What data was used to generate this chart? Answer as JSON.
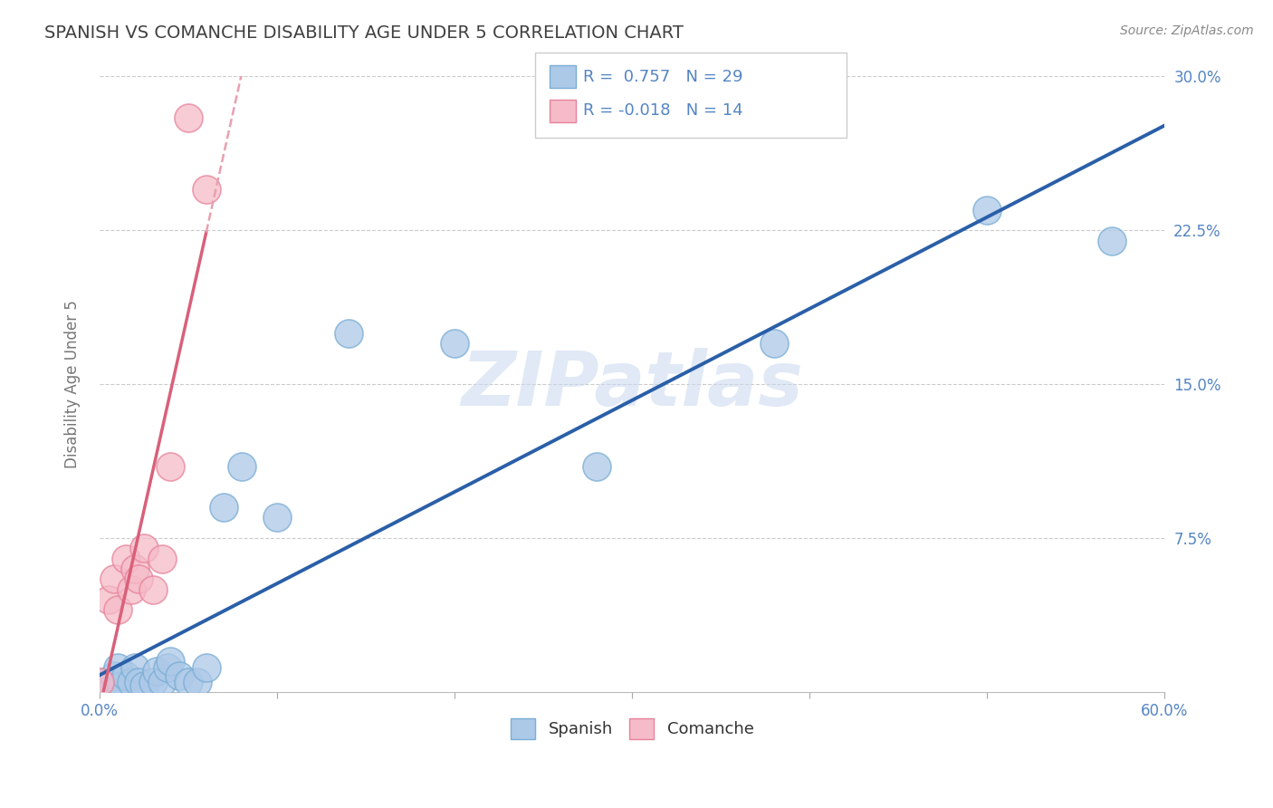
{
  "title": "SPANISH VS COMANCHE DISABILITY AGE UNDER 5 CORRELATION CHART",
  "source": "Source: ZipAtlas.com",
  "ylabel": "Disability Age Under 5",
  "xlim": [
    0.0,
    0.6
  ],
  "ylim": [
    0.0,
    0.3
  ],
  "xticks": [
    0.0,
    0.1,
    0.2,
    0.3,
    0.4,
    0.5,
    0.6
  ],
  "xticklabels": [
    "0.0%",
    "",
    "",
    "",
    "",
    "",
    "60.0%"
  ],
  "yticks": [
    0.0,
    0.075,
    0.15,
    0.225,
    0.3
  ],
  "yticklabels_right": [
    "",
    "7.5%",
    "15.0%",
    "22.5%",
    "30.0%"
  ],
  "spanish_color": "#adc9e8",
  "comanche_color": "#f5bbc8",
  "spanish_edge": "#7aadd4",
  "comanche_edge": "#e8829a",
  "spanish_line_color": "#2a5fa8",
  "comanche_solid_color": "#d9607a",
  "comanche_dash_color": "#e8a0b0",
  "spanish_R": 0.757,
  "spanish_N": 29,
  "comanche_R": -0.018,
  "comanche_N": 14,
  "spanish_x": [
    0.0,
    0.005,
    0.008,
    0.01,
    0.01,
    0.012,
    0.015,
    0.018,
    0.02,
    0.022,
    0.025,
    0.03,
    0.032,
    0.035,
    0.038,
    0.04,
    0.045,
    0.05,
    0.055,
    0.06,
    0.07,
    0.08,
    0.1,
    0.14,
    0.2,
    0.28,
    0.38,
    0.5,
    0.57
  ],
  "spanish_y": [
    0.005,
    0.003,
    0.008,
    0.005,
    0.012,
    0.003,
    0.008,
    0.005,
    0.012,
    0.005,
    0.003,
    0.005,
    0.01,
    0.005,
    0.012,
    0.015,
    0.008,
    0.005,
    0.005,
    0.012,
    0.09,
    0.11,
    0.085,
    0.175,
    0.17,
    0.11,
    0.17,
    0.235,
    0.22
  ],
  "comanche_x": [
    0.0,
    0.005,
    0.008,
    0.01,
    0.015,
    0.018,
    0.02,
    0.022,
    0.025,
    0.03,
    0.035,
    0.04,
    0.05,
    0.06
  ],
  "comanche_y": [
    0.005,
    0.045,
    0.055,
    0.04,
    0.065,
    0.05,
    0.06,
    0.055,
    0.07,
    0.05,
    0.065,
    0.11,
    0.28,
    0.245
  ],
  "background_color": "#ffffff",
  "grid_color": "#cccccc",
  "title_color": "#404040",
  "tick_color": "#5585c5",
  "watermark": "ZIPatlas"
}
